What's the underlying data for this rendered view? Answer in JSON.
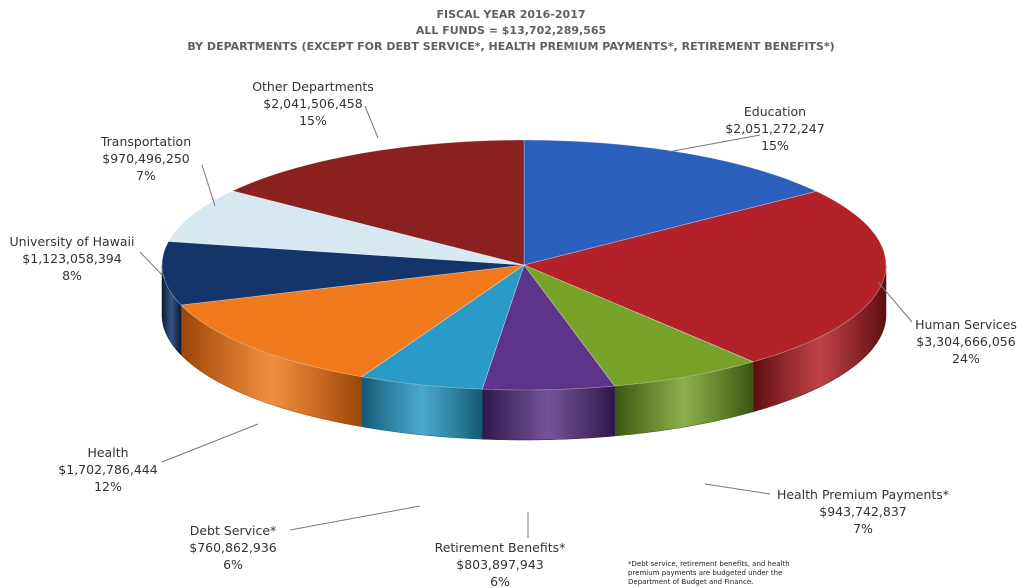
{
  "title_lines": [
    "FISCAL YEAR 2016-2017",
    "ALL FUNDS = $13,702,289,565",
    "BY DEPARTMENTS (EXCEPT FOR DEBT SERVICE*, HEALTH PREMIUM PAYMENTS*, RETIREMENT BENEFITS*)"
  ],
  "footnote_lines": [
    "*Debt service, retirement benefits, and health",
    "premium payments are budgeted under the",
    "Department of Budget and Finance."
  ],
  "chart_data": {
    "type": "pie",
    "title": "FISCAL YEAR 2016-2017 ALL FUNDS = $13,702,289,565 BY DEPARTMENTS (EXCEPT FOR DEBT SERVICE*, HEALTH PREMIUM PAYMENTS*, RETIREMENT BENEFITS*)",
    "total": 13702289565,
    "slices": [
      {
        "name": "Education",
        "value": 2051272247,
        "amount": "$2,051,272,247",
        "percent": "15%",
        "color": "#2b5fbd",
        "dark": "#173a7c"
      },
      {
        "name": "Human Services",
        "value": 3304666056,
        "amount": "$3,304,666,056",
        "percent": "24%",
        "color": "#b22228",
        "dark": "#5e0d10"
      },
      {
        "name": "Health Premium Payments*",
        "value": 943742837,
        "amount": "$943,742,837",
        "percent": "7%",
        "color": "#76a22a",
        "dark": "#3c5412"
      },
      {
        "name": "Retirement Benefits*",
        "value": 803897943,
        "amount": "$803,897,943",
        "percent": "6%",
        "color": "#5d3489",
        "dark": "#2e1747"
      },
      {
        "name": "Debt Service*",
        "value": 760862936,
        "amount": "$760,862,936",
        "percent": "6%",
        "color": "#2a9ac6",
        "dark": "#125a74"
      },
      {
        "name": "Health",
        "value": 1702786444,
        "amount": "$1,702,786,444",
        "percent": "12%",
        "color": "#f07a1c",
        "dark": "#9a4508"
      },
      {
        "name": "University of Hawaii",
        "value": 1123058394,
        "amount": "$1,123,058,394",
        "percent": "8%",
        "color": "#15346a",
        "dark": "#0a1a38"
      },
      {
        "name": "Transportation",
        "value": 970496250,
        "amount": "$970,496,250",
        "percent": "7%",
        "color": "#d6e9f2",
        "dark": "#8fa8b2"
      },
      {
        "name": "Other Departments",
        "value": 2041506458,
        "amount": "$2,041,506,458",
        "percent": "15%",
        "color": "#8b2020",
        "dark": "#4a0e0e"
      }
    ]
  }
}
